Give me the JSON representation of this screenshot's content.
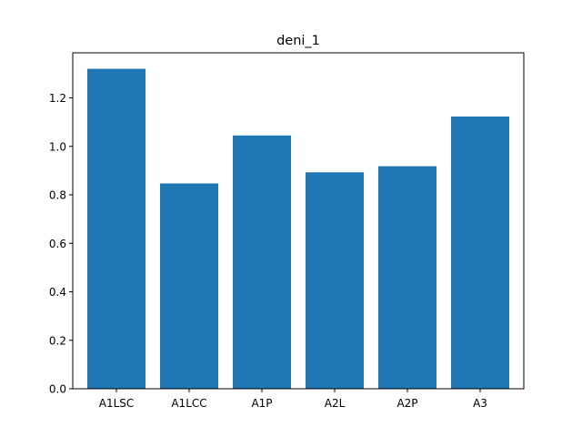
{
  "chart_data": {
    "type": "bar",
    "title": "deni_1",
    "xlabel": "",
    "ylabel": "",
    "categories": [
      "A1LSC",
      "A1LCC",
      "A1P",
      "A2L",
      "A2P",
      "A3"
    ],
    "values": [
      1.32,
      0.847,
      1.045,
      0.893,
      0.918,
      1.123
    ],
    "ylim": [
      0,
      1.386
    ],
    "yticks": [
      "0.0",
      "0.2",
      "0.4",
      "0.6",
      "0.8",
      "1.0",
      "1.2"
    ],
    "bar_color": "#1f77b4",
    "grid": false
  }
}
